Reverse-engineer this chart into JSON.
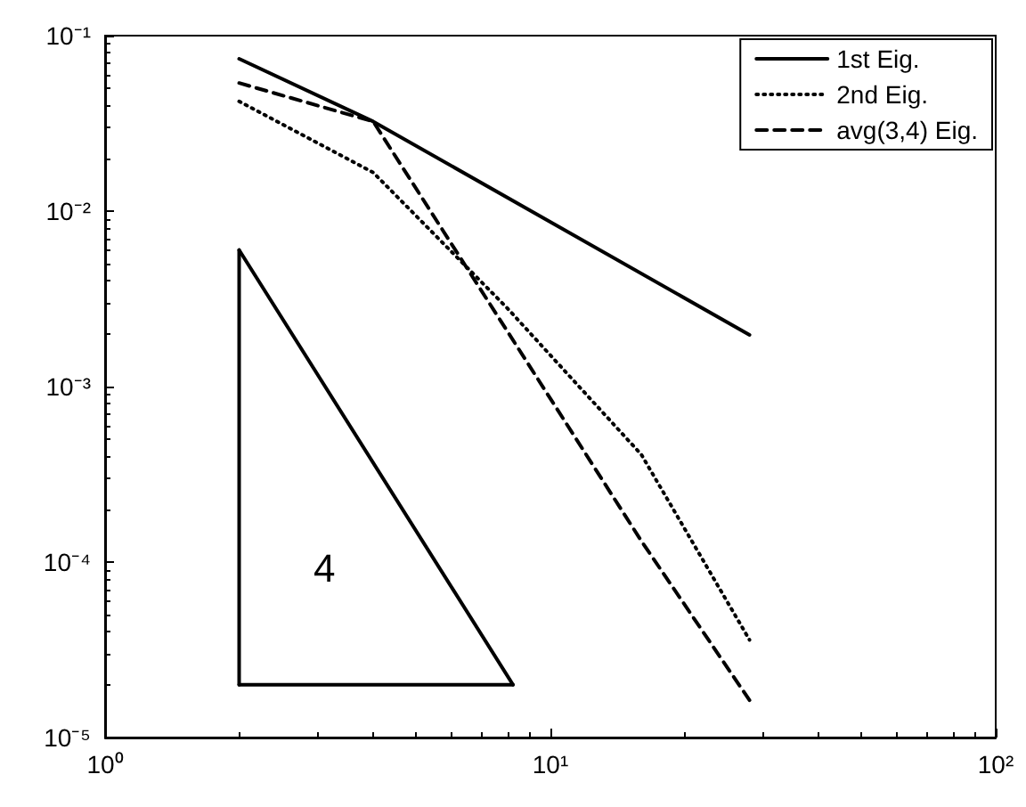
{
  "chart_data": {
    "type": "line",
    "log": "xy",
    "xlim": [
      1,
      100
    ],
    "ylim": [
      1e-05,
      0.1
    ],
    "xticks": [
      {
        "value": 1,
        "label": "10⁰"
      },
      {
        "value": 10,
        "label": "10¹"
      },
      {
        "value": 100,
        "label": "10²"
      }
    ],
    "yticks": [
      {
        "value": 1e-05,
        "label": "10⁻⁵"
      },
      {
        "value": 0.0001,
        "label": "10⁻⁴"
      },
      {
        "value": 0.001,
        "label": "10⁻³"
      },
      {
        "value": 0.01,
        "label": "10⁻²"
      },
      {
        "value": 0.1,
        "label": "10⁻¹"
      }
    ],
    "grid": false,
    "legend": "top right",
    "marker": "none",
    "series": [
      {
        "name": "1st Eig.",
        "color": "#000000",
        "line_style": "solid",
        "x": [
          2,
          4,
          28
        ],
        "values": [
          0.0738,
          0.0324,
          0.00197
        ]
      },
      {
        "name": "2nd Eig.",
        "color": "#000000",
        "line_style": "dotted",
        "x": [
          2,
          4,
          8,
          16,
          28
        ],
        "values": [
          0.0422,
          0.0166,
          0.0028,
          0.00041,
          3.6e-05
        ]
      },
      {
        "name": "avg(3,4) Eig.",
        "color": "#000000",
        "line_style": "dashed",
        "x": [
          2,
          4,
          8,
          16,
          28
        ],
        "values": [
          0.0537,
          0.0324,
          0.00207,
          0.000132,
          1.63e-05
        ]
      },
      {
        "color": "#000000",
        "line_style": "solid",
        "x": [
          2,
          8.24
        ],
        "values": [
          0.006,
          2e-05
        ]
      },
      {
        "color": "#000000",
        "line_style": "solid",
        "x": [
          2,
          8.24
        ],
        "values": [
          2e-05,
          2e-05
        ]
      },
      {
        "color": "#000000",
        "line_style": "solid",
        "x": [
          2,
          2
        ],
        "values": [
          0.006,
          2e-05
        ]
      }
    ],
    "annotations": [
      "4"
    ]
  }
}
